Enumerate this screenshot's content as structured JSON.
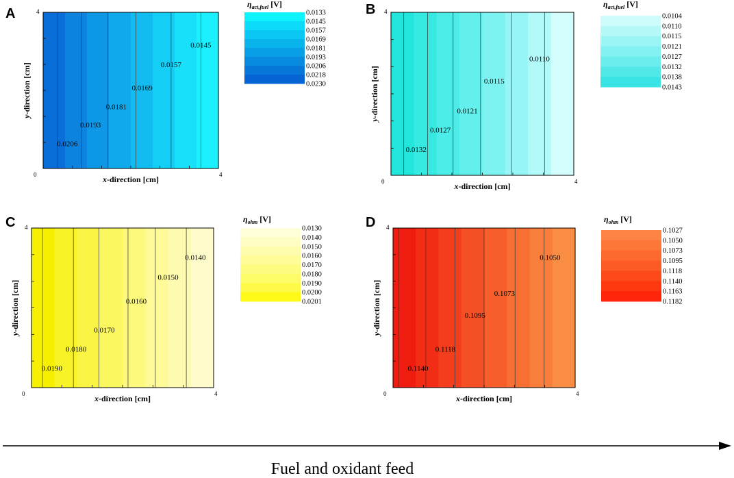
{
  "chart_data": [
    {
      "type": "heatmap",
      "panel": "A",
      "legend_title": "η",
      "legend_title_sub": "act,fuel",
      "legend_title_unit": "[V]",
      "legend_values": [
        "0.0133",
        "0.0145",
        "0.0157",
        "0.0169",
        "0.0181",
        "0.0193",
        "0.0206",
        "0.0218",
        "0.0230"
      ],
      "legend_colors": [
        "#0ff3ff",
        "#0cdcf9",
        "#0ac7f3",
        "#09b3ec",
        "#089fe6",
        "#078bdf",
        "#0677d9",
        "#0563d3"
      ],
      "band_colors": [
        "#0a6ed8",
        "#0c84df",
        "#0e97e6",
        "#10a9ec",
        "#12bcf1",
        "#14cef6",
        "#18e0fb",
        "#1cf0fe"
      ],
      "contour_labels": [
        {
          "text": "0.0206",
          "x": 0.55,
          "y": 0.57
        },
        {
          "text": "0.0193",
          "x": 1.08,
          "y": 1.05
        },
        {
          "text": "0.0181",
          "x": 1.67,
          "y": 1.52
        },
        {
          "text": "0.0169",
          "x": 2.26,
          "y": 2.0
        },
        {
          "text": "0.0157",
          "x": 2.92,
          "y": 2.6
        },
        {
          "text": "0.0145",
          "x": 3.6,
          "y": 3.1
        }
      ],
      "xlabel_italic": "x",
      "xlabel_rest": "-direction [cm]",
      "ylabel_italic": "y",
      "ylabel_rest": "-direction [cm]",
      "xlim": [
        0,
        4
      ],
      "ylim": [
        0,
        4
      ],
      "tick_labels": {
        "x0": "0",
        "x4": "4",
        "y4": "4"
      }
    },
    {
      "type": "heatmap",
      "panel": "B",
      "legend_title": "η",
      "legend_title_sub": "act,fuel",
      "legend_title_unit": "[V]",
      "legend_values": [
        "0.0104",
        "0.0110",
        "0.0115",
        "0.0121",
        "0.0127",
        "0.0132",
        "0.0138",
        "0.0143"
      ],
      "legend_colors": [
        "#cefbfb",
        "#b4f8f8",
        "#9bf5f5",
        "#83f1f1",
        "#6beded",
        "#53e8e8",
        "#3be4e4"
      ],
      "band_colors": [
        "#22e6dc",
        "#36eae2",
        "#4cede8",
        "#63f0ec",
        "#7cf3f1",
        "#96f6f5",
        "#b2f9f9",
        "#d3fdfd"
      ],
      "contour_labels": [
        {
          "text": "0.0132",
          "x": 0.55,
          "y": 0.57
        },
        {
          "text": "0.0127",
          "x": 1.08,
          "y": 1.05
        },
        {
          "text": "0.0121",
          "x": 1.67,
          "y": 1.52
        },
        {
          "text": "0.0115",
          "x": 2.26,
          "y": 2.25
        },
        {
          "text": "0.0110",
          "x": 3.25,
          "y": 2.8
        }
      ],
      "xlabel_italic": "x",
      "xlabel_rest": "-direction [cm]",
      "ylabel_italic": "y",
      "ylabel_rest": "-direction [cm]",
      "xlim": [
        0,
        4
      ],
      "ylim": [
        0,
        4
      ],
      "tick_labels": {
        "x0": "0",
        "x4": "4",
        "y4": "4"
      }
    },
    {
      "type": "heatmap",
      "panel": "C",
      "legend_title": "η",
      "legend_title_sub": "ohm",
      "legend_title_unit": "[V]",
      "legend_values": [
        "0.0130",
        "0.0140",
        "0.0150",
        "0.0160",
        "0.0170",
        "0.0180",
        "0.0190",
        "0.0200",
        "0.0201"
      ],
      "legend_colors": [
        "#fefed8",
        "#fefec4",
        "#fefdad",
        "#fefd97",
        "#fefc80",
        "#fefb69",
        "#fefa48",
        "#fef917"
      ],
      "band_colors": [
        "#f6f000",
        "#f8f326",
        "#faf545",
        "#fbf761",
        "#fcf97d",
        "#fdfa97",
        "#fefbb1",
        "#fffccb"
      ],
      "contour_labels": [
        {
          "text": "0.0190",
          "x": 0.45,
          "y": 0.42
        },
        {
          "text": "0.0180",
          "x": 0.98,
          "y": 0.9
        },
        {
          "text": "0.0170",
          "x": 1.6,
          "y": 1.38
        },
        {
          "text": "0.0160",
          "x": 2.3,
          "y": 2.1
        },
        {
          "text": "0.0150",
          "x": 3.0,
          "y": 2.7
        },
        {
          "text": "0.0140",
          "x": 3.6,
          "y": 3.2
        }
      ],
      "xlabel_italic": "x",
      "xlabel_rest": "-direction [cm]",
      "ylabel_italic": "y",
      "ylabel_rest": "-direction [cm]",
      "xlim": [
        0,
        4
      ],
      "ylim": [
        0,
        4
      ],
      "tick_labels": {
        "x0": "0",
        "x4": "4",
        "y4": "4"
      }
    },
    {
      "type": "heatmap",
      "panel": "D",
      "legend_title": "η",
      "legend_title_sub": "ohm",
      "legend_title_unit": "[V]",
      "legend_values": [
        "0.1027",
        "0.1050",
        "0.1073",
        "0.1095",
        "0.1118",
        "0.1140",
        "0.1163",
        "0.1182"
      ],
      "legend_colors": [
        "#fd8444",
        "#fd7739",
        "#fd692f",
        "#fd5a25",
        "#fd4a1b",
        "#fe3912",
        "#fe250a"
      ],
      "band_colors": [
        "#ef1c10",
        "#f22d16",
        "#f33e1d",
        "#f54f24",
        "#f65f2b",
        "#f76f33",
        "#f87e3b",
        "#fa8d44"
      ],
      "contour_labels": [
        {
          "text": "0.1140",
          "x": 0.55,
          "y": 0.42
        },
        {
          "text": "0.1118",
          "x": 1.15,
          "y": 0.9
        },
        {
          "text": "0.1095",
          "x": 1.8,
          "y": 1.75
        },
        {
          "text": "0.1073",
          "x": 2.45,
          "y": 2.3
        },
        {
          "text": "0.1050",
          "x": 3.45,
          "y": 3.2
        }
      ],
      "xlabel_italic": "x",
      "xlabel_rest": "-direction [cm]",
      "ylabel_italic": "y",
      "ylabel_rest": "-direction [cm]",
      "xlim": [
        0,
        4
      ],
      "ylim": [
        0,
        4
      ],
      "tick_labels": {
        "x0": "0",
        "x4": "4",
        "y4": "4"
      }
    }
  ],
  "feed_label": "Fuel and oxidant feed",
  "line_color": "#333333"
}
